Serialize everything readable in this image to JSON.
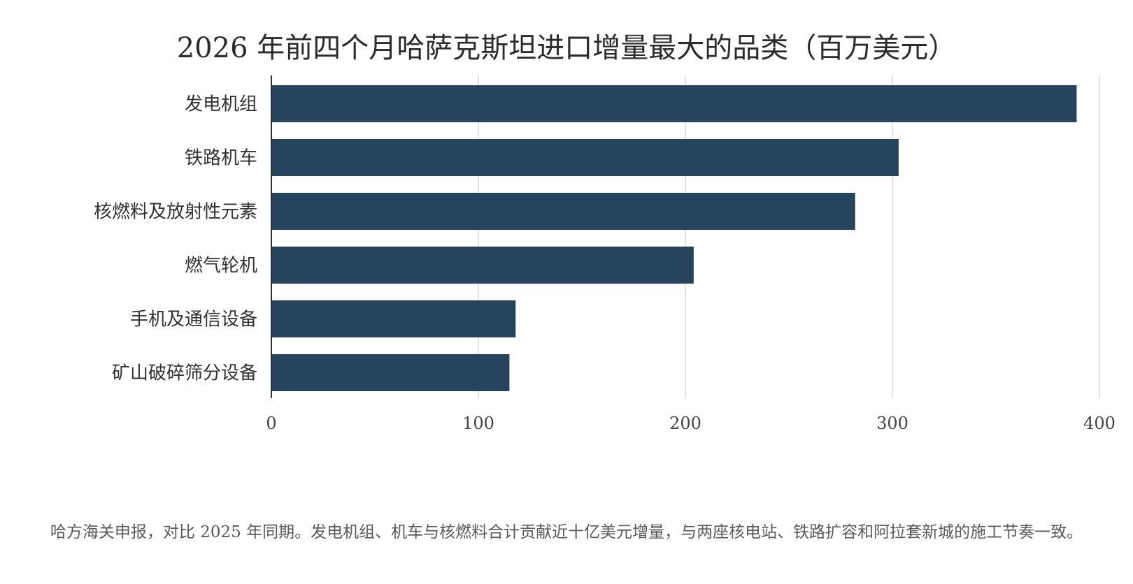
{
  "colors": {
    "bar": "#27445f",
    "grid": "#d6d8dd",
    "axis": "#333333"
  },
  "footnote": "哈方海关申报，对比 2025 年同期。发电机组、机车与核燃料合计贡献近十亿美元增量，与两座核电站、铁路扩容和阿拉套新城的施工节奏一致。",
  "chart_data": {
    "type": "bar",
    "orientation": "horizontal",
    "title": "2026 年前四个月哈萨克斯坦进口增量最大的品类（百万美元）",
    "categories": [
      "发电机组",
      "铁路机车",
      "核燃料及放射性元素",
      "燃气轮机",
      "手机及通信设备",
      "矿山破碎筛分设备"
    ],
    "values": [
      389,
      303,
      282,
      204,
      118,
      115
    ],
    "xlim": [
      0,
      400
    ],
    "xticks": [
      "0",
      "100",
      "200",
      "300",
      "400"
    ],
    "grid": true,
    "legend": false
  }
}
